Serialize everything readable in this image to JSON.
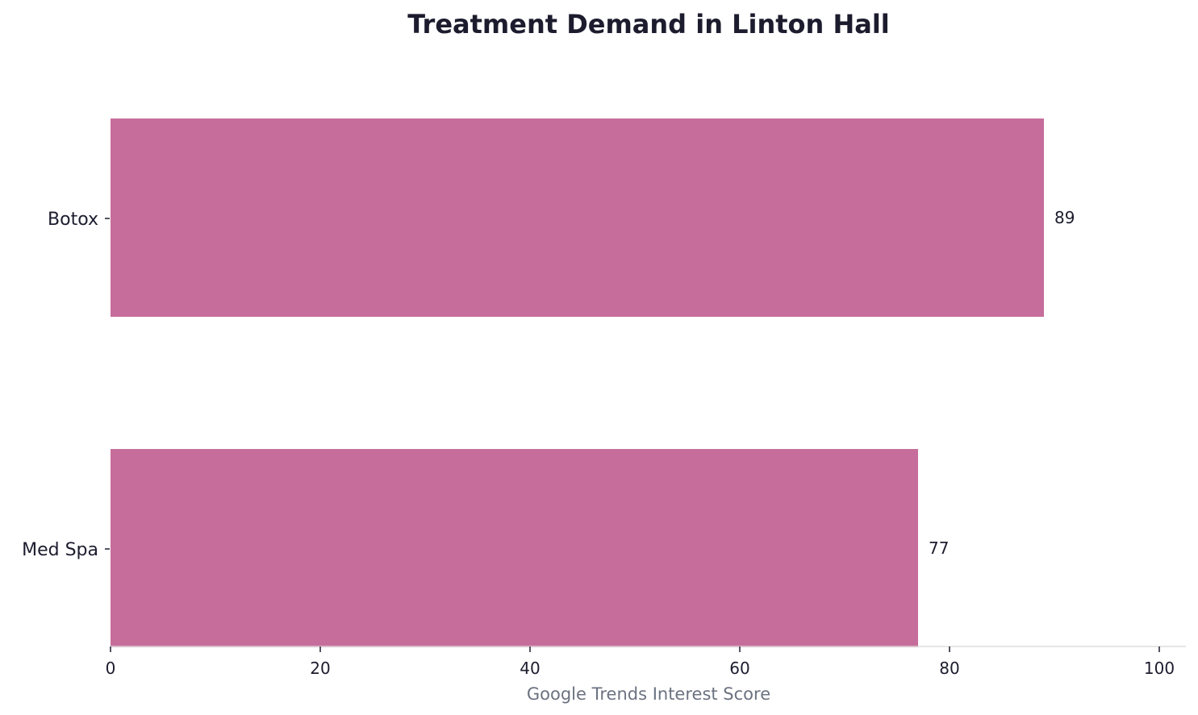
{
  "chart_data": {
    "type": "bar",
    "orientation": "horizontal",
    "title": "Treatment Demand in Linton Hall",
    "categories": [
      "Botox",
      "Med Spa"
    ],
    "values": [
      89,
      77
    ],
    "xlabel": "Google Trends Interest Score",
    "ylabel": "",
    "xlim": [
      0,
      100
    ],
    "xticks": [
      0,
      20,
      40,
      60,
      80,
      100
    ],
    "grid": false,
    "bar_color": "#c66d9b",
    "axis_color": "#dddddd"
  }
}
